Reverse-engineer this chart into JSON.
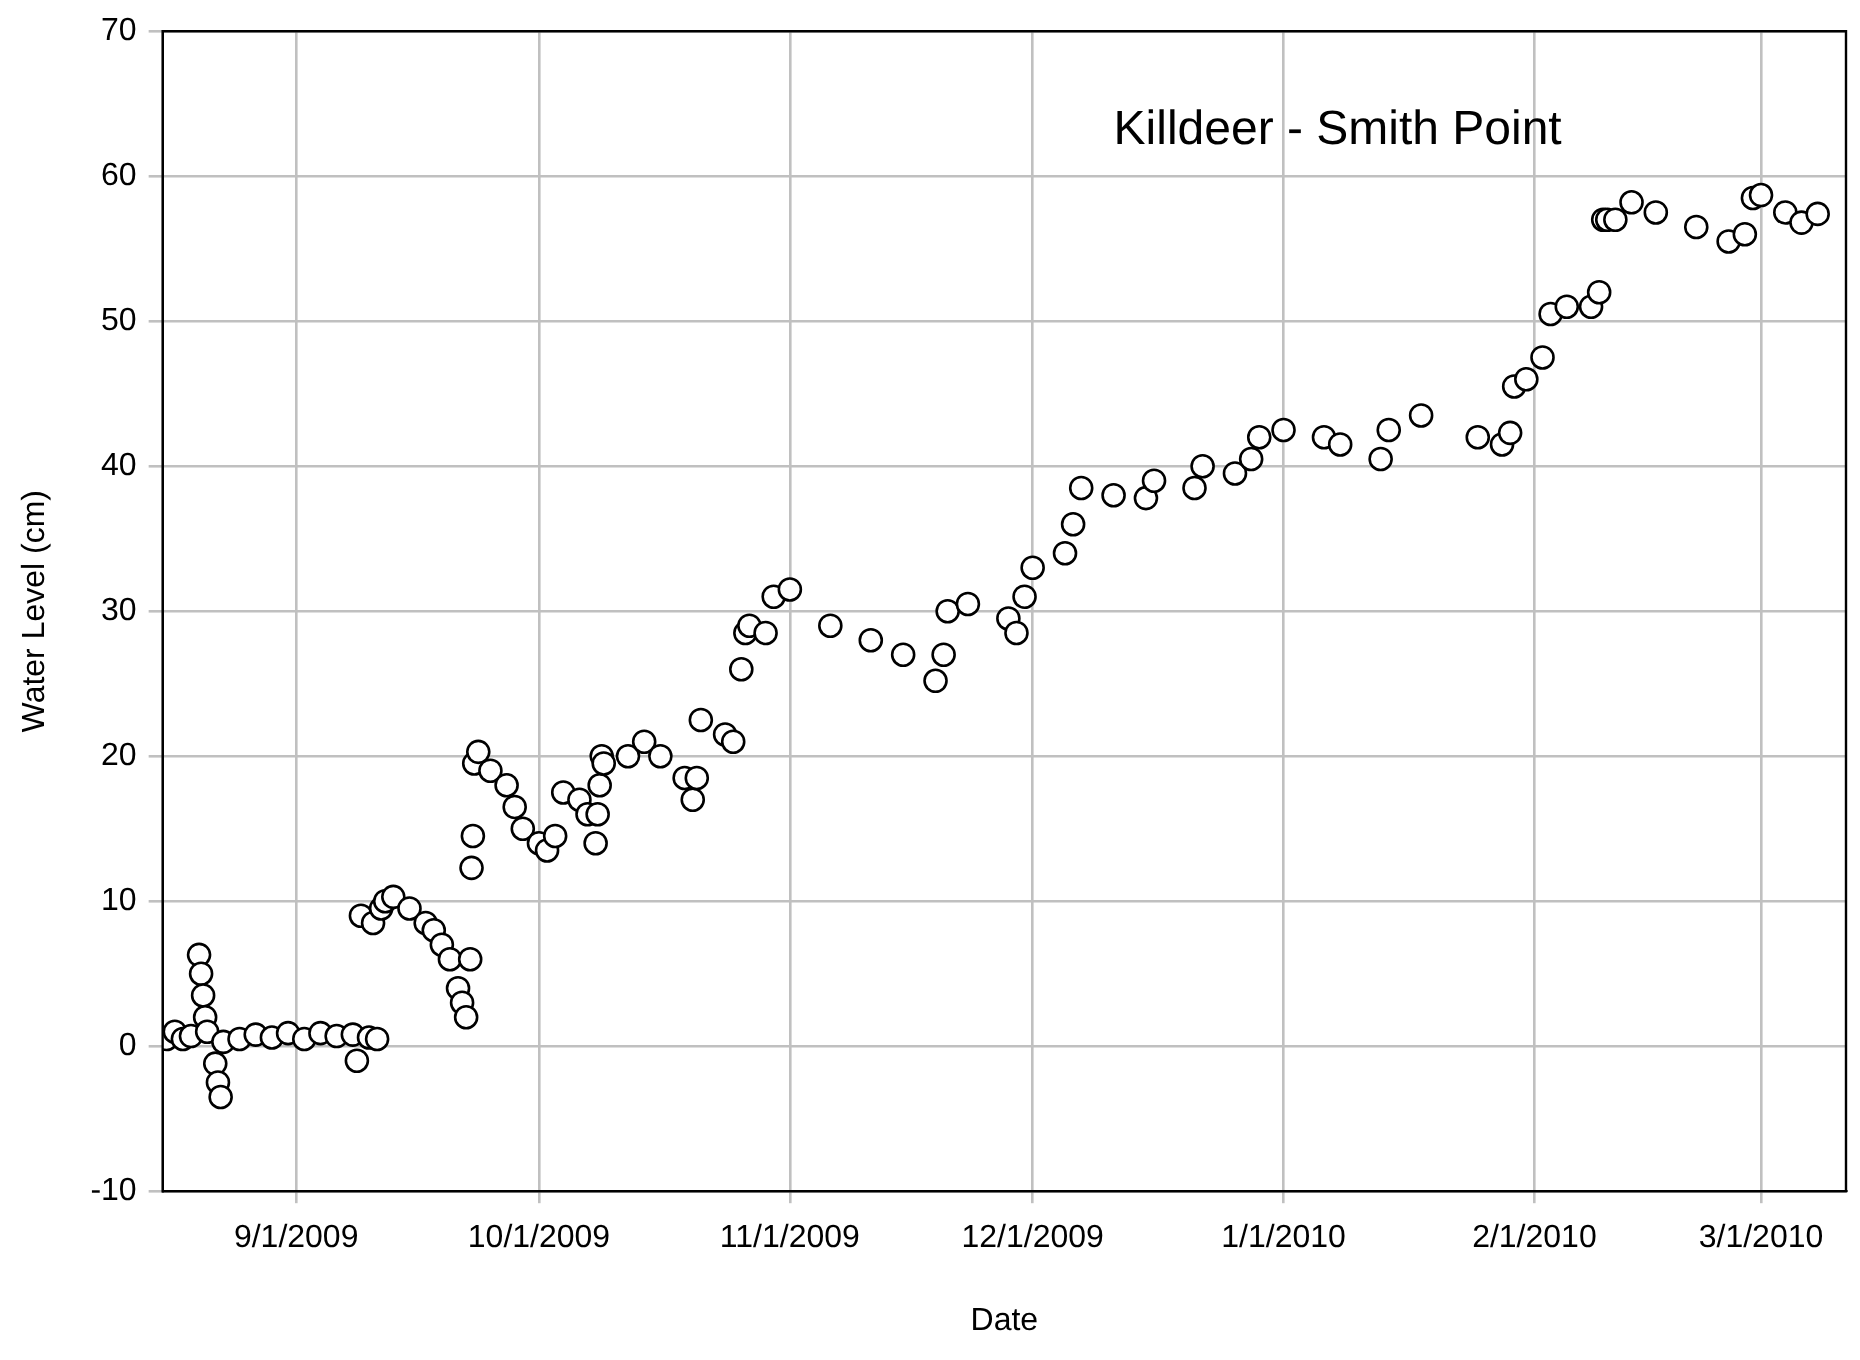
{
  "chart_data": {
    "type": "scatter",
    "xlabel": "Date",
    "ylabel": "Water Level (cm)",
    "annotations": [
      "Killdeer - Smith Point"
    ],
    "xlim": [
      "2009-08-15T12:00",
      "2010-03-11T12:00"
    ],
    "xticks": [
      {
        "value": "2009-09-01",
        "label": "9/1/2009"
      },
      {
        "value": "2009-10-01",
        "label": "10/1/2009"
      },
      {
        "value": "2009-11-01",
        "label": "11/1/2009"
      },
      {
        "value": "2009-12-01",
        "label": "12/1/2009"
      },
      {
        "value": "2010-01-01",
        "label": "1/1/2010"
      },
      {
        "value": "2010-02-01",
        "label": "2/1/2010"
      },
      {
        "value": "2010-03-01",
        "label": "3/1/2010"
      }
    ],
    "ylim": [
      -10,
      70
    ],
    "yticks": [
      -10,
      0,
      10,
      20,
      30,
      40,
      50,
      60,
      70
    ],
    "grid": true,
    "marker": "circle",
    "series": [
      {
        "color": "#000000",
        "x": [
          "2009-08-16",
          "2009-08-17",
          "2009-08-18",
          "2009-08-19",
          "2009-08-20",
          "2009-08-20T06:00",
          "2009-08-20T12:00",
          "2009-08-20T18:00",
          "2009-08-21",
          "2009-08-22",
          "2009-08-22T08:00",
          "2009-08-22T16:00",
          "2009-08-23",
          "2009-08-25",
          "2009-08-27",
          "2009-08-29",
          "2009-08-31",
          "2009-09-02",
          "2009-09-04",
          "2009-09-06",
          "2009-09-08",
          "2009-09-08T12:00",
          "2009-09-10",
          "2009-09-11",
          "2009-09-09",
          "2009-09-10T12:00",
          "2009-09-11T12:00",
          "2009-09-12",
          "2009-09-13",
          "2009-09-15",
          "2009-09-17",
          "2009-09-18",
          "2009-09-19",
          "2009-09-20",
          "2009-09-21",
          "2009-09-21T12:00",
          "2009-09-22",
          "2009-09-22T12:00",
          "2009-09-22T16:00",
          "2009-09-22T20:00",
          "2009-09-23",
          "2009-09-23T12:00",
          "2009-09-25",
          "2009-09-27",
          "2009-09-28",
          "2009-09-29",
          "2009-10-01",
          "2009-10-02",
          "2009-10-03",
          "2009-10-04",
          "2009-10-06",
          "2009-10-07",
          "2009-10-08",
          "2009-10-08T06:00",
          "2009-10-08T12:00",
          "2009-10-08T18:00",
          "2009-10-09",
          "2009-10-12",
          "2009-10-14",
          "2009-10-16",
          "2009-10-19",
          "2009-10-20",
          "2009-10-20T12:00",
          "2009-10-21",
          "2009-10-24",
          "2009-10-25",
          "2009-10-26",
          "2009-10-26T12:00",
          "2009-10-27",
          "2009-10-29",
          "2009-10-30",
          "2009-11-01",
          "2009-11-06",
          "2009-11-11",
          "2009-11-15",
          "2009-11-19",
          "2009-11-20",
          "2009-11-20T12:00",
          "2009-11-23",
          "2009-11-28",
          "2009-11-29",
          "2009-11-30",
          "2009-12-01",
          "2009-12-05",
          "2009-12-06",
          "2009-12-07",
          "2009-12-11",
          "2009-12-15",
          "2009-12-16",
          "2009-12-21",
          "2009-12-22",
          "2009-12-26",
          "2009-12-28",
          "2009-12-29",
          "2010-01-01",
          "2010-01-06",
          "2010-01-08",
          "2010-01-13",
          "2010-01-14",
          "2010-01-18",
          "2010-01-25",
          "2010-01-28",
          "2010-01-29",
          "2010-01-29T12:00",
          "2010-01-31",
          "2010-02-02",
          "2010-02-03",
          "2010-02-05",
          "2010-02-08",
          "2010-02-09",
          "2010-02-09T12:00",
          "2010-02-10",
          "2010-02-11",
          "2010-02-13",
          "2010-02-16",
          "2010-02-21",
          "2010-02-25",
          "2010-02-27",
          "2010-02-28",
          "2010-03-01",
          "2010-03-04",
          "2010-03-06",
          "2010-03-08"
        ],
        "values": [
          0.5,
          1,
          0.5,
          0.7,
          6.3,
          5,
          3.5,
          2,
          1,
          -1.2,
          -2.5,
          -3.5,
          0.3,
          0.5,
          0.8,
          0.6,
          0.9,
          0.5,
          0.9,
          0.7,
          0.8,
          -1,
          0.6,
          0.5,
          9,
          8.5,
          9.5,
          10,
          10.3,
          9.5,
          8.5,
          8,
          7,
          6,
          4,
          3,
          2,
          6,
          12.3,
          14.5,
          19.5,
          20.3,
          19,
          18,
          16.5,
          15,
          14,
          13.5,
          14.5,
          17.5,
          17,
          16,
          14,
          16,
          18,
          20,
          19.5,
          20,
          21,
          20,
          18.5,
          17,
          18.5,
          22.5,
          21.5,
          21,
          26,
          28.5,
          29,
          28.5,
          31,
          31.5,
          29,
          28,
          27,
          25.2,
          27,
          30,
          30.5,
          29.5,
          28.5,
          31,
          33,
          34,
          36,
          38.5,
          38,
          37.8,
          39,
          38.5,
          40,
          39.5,
          40.5,
          42,
          42.5,
          42,
          41.5,
          40.5,
          42.5,
          43.5,
          42,
          41.5,
          42.3,
          45.5,
          46,
          47.5,
          50.5,
          51,
          51,
          52,
          57,
          57,
          57,
          58.2,
          57.5,
          56.5,
          55.5,
          56,
          58.5,
          58.7,
          57.5,
          56.8,
          57.4
        ]
      }
    ]
  }
}
